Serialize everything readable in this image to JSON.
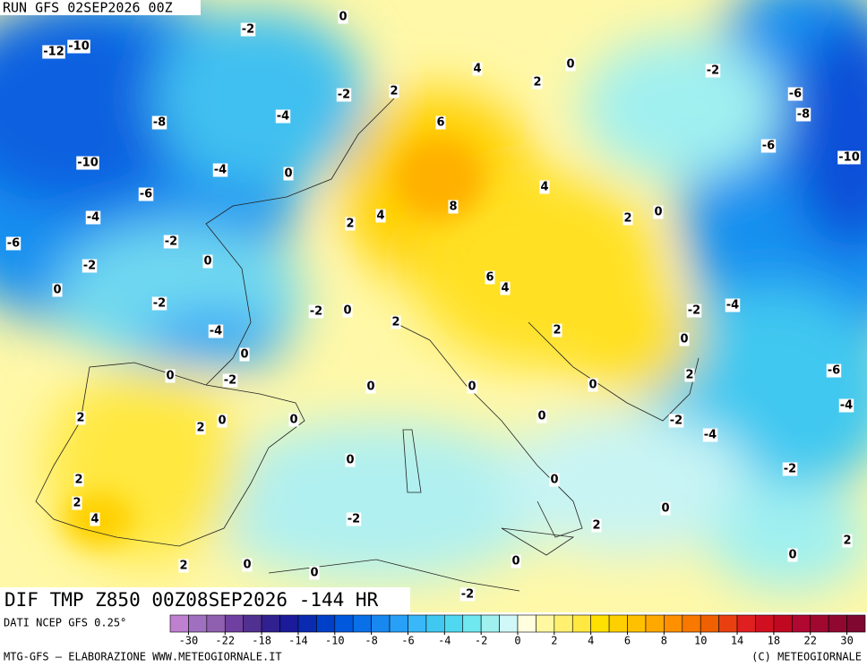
{
  "header": {
    "run": "RUN GFS 02SEP2026 00Z"
  },
  "map": {
    "contour_labels": [
      0,
      -2,
      -10,
      -12,
      4,
      0,
      2,
      -2,
      2,
      -2,
      -6,
      -4,
      -8,
      -8,
      6,
      -6,
      -10,
      -10,
      -4,
      0,
      -6,
      4,
      8,
      4,
      -4,
      2,
      2,
      0,
      -6,
      -2,
      -2,
      0,
      6,
      4,
      0,
      -2,
      -2,
      0,
      -2,
      -4,
      2,
      -4,
      2,
      0,
      0,
      -6,
      0,
      -2,
      2,
      0,
      0,
      0,
      -4,
      2,
      0,
      0,
      2,
      0,
      -2,
      -4,
      0,
      -2,
      2,
      0,
      2,
      0,
      -2,
      4,
      2,
      2,
      0,
      0,
      2,
      0,
      0,
      -2
    ]
  },
  "title": "DIF TMP Z850 00Z08SEP2026 -144 HR",
  "source": "DATI NCEP GFS 0.25°",
  "colorbar": {
    "colors": [
      "#c080d0",
      "#a070c0",
      "#9060b0",
      "#7040a0",
      "#503090",
      "#302090",
      "#1a1a9a",
      "#0a2ab0",
      "#0040c8",
      "#0058dc",
      "#0a70e8",
      "#1888f0",
      "#28a0f8",
      "#38b8f8",
      "#40c8f0",
      "#50d8f0",
      "#70e8f0",
      "#a0f0f0",
      "#d0f8f8",
      "#ffffe0",
      "#fff8a0",
      "#fff070",
      "#ffe840",
      "#ffe000",
      "#ffd000",
      "#ffc000",
      "#ffa800",
      "#ff9000",
      "#f87800",
      "#f06000",
      "#e84010",
      "#e02020",
      "#d01020",
      "#c00820",
      "#b00830",
      "#a00830",
      "#900830",
      "#800830"
    ],
    "ticks": [
      -30,
      -22,
      -18,
      -14,
      -10,
      -8,
      -6,
      -4,
      -2,
      0,
      2,
      4,
      6,
      8,
      10,
      14,
      18,
      22,
      30
    ]
  },
  "footer": {
    "left": "MTG-GFS — ELABORAZIONE WWW.METEOGIORNALE.IT",
    "right": "(C) METEOGIORNALE"
  }
}
